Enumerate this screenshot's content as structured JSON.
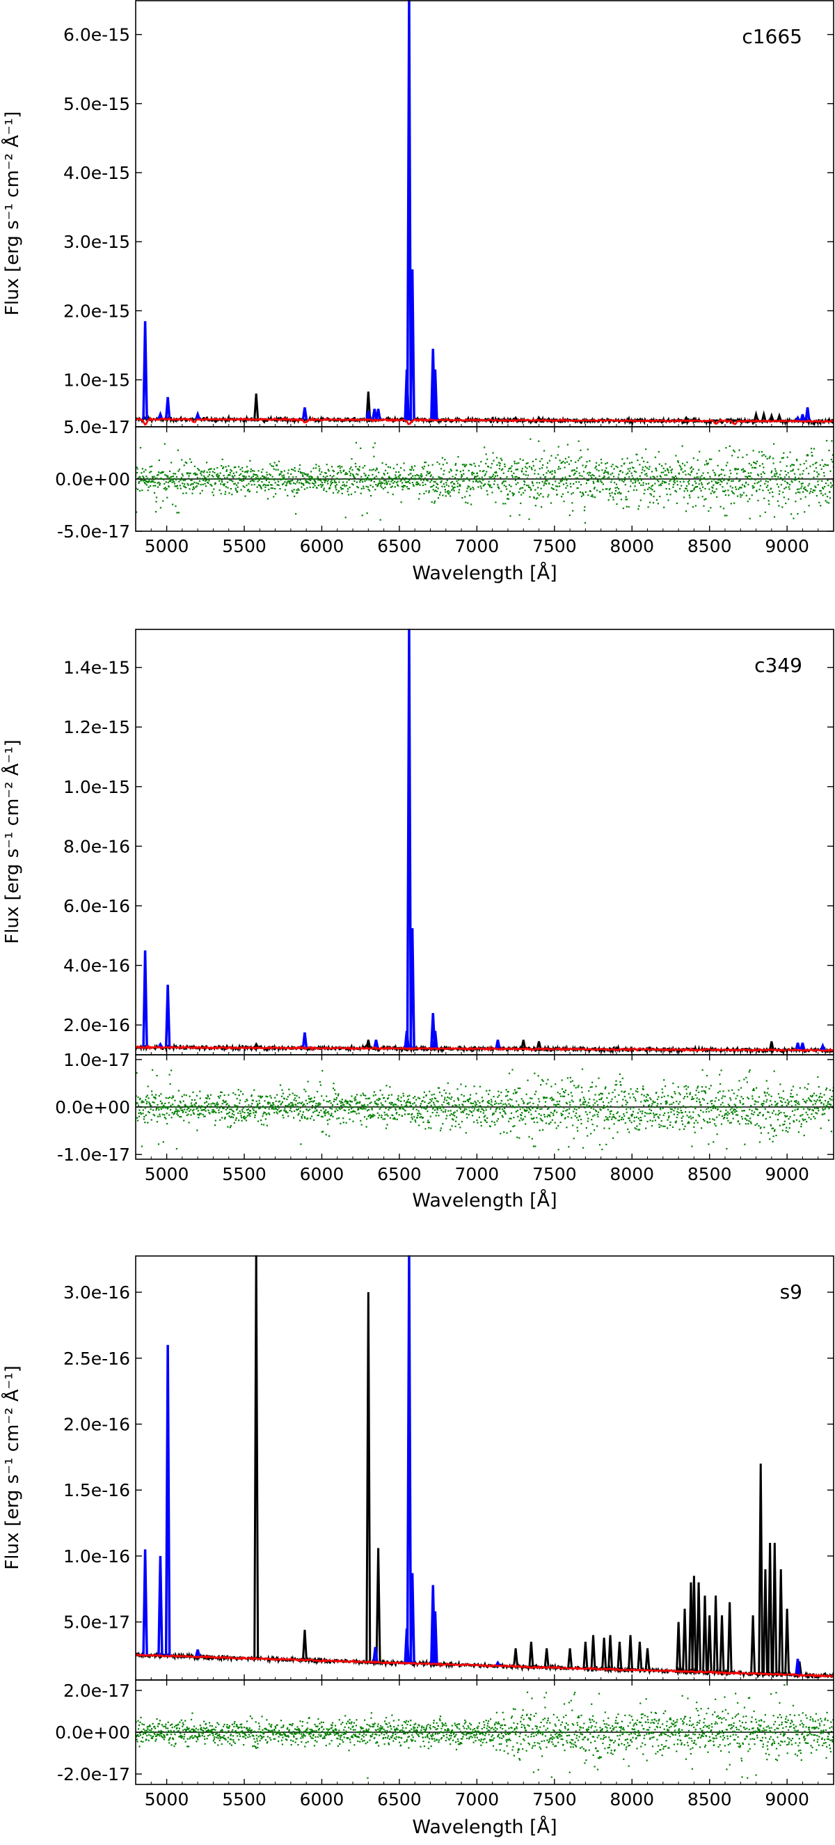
{
  "figure": {
    "x_label": "Wavelength [Å]",
    "y_label": "Flux [erg s⁻¹ cm⁻² Å⁻¹]"
  },
  "colors": {
    "observed": "#000000",
    "emission": "#0000ff",
    "model": "#ff0000",
    "residual": "#008000"
  },
  "chart_data": [
    {
      "type": "line",
      "panel_label": "c1665",
      "xlabel": "Wavelength [Å]",
      "ylabel": "Flux [erg s⁻¹ cm⁻² Å⁻¹]",
      "xlim": [
        4800,
        9300
      ],
      "x_ticks": [
        5000,
        5500,
        6000,
        6500,
        7000,
        7500,
        8000,
        8500,
        9000
      ],
      "x_tick_labels": [
        "5000",
        "5500",
        "6000",
        "6500",
        "7000",
        "7500",
        "8000",
        "8500",
        "9000"
      ],
      "ylim": [
        3.2e-16,
        6.5e-15
      ],
      "y_ticks": [
        1e-15,
        2e-15,
        3e-15,
        4e-15,
        5e-15,
        6e-15
      ],
      "y_tick_labels": [
        "1.0e-15",
        "2.0e-15",
        "3.0e-15",
        "4.0e-15",
        "5.0e-15",
        "6.0e-15"
      ],
      "continuum": [
        [
          4800,
          4.3e-16
        ],
        [
          9300,
          4e-16
        ]
      ],
      "sky_lines": [
        [
          5577,
          8e-16
        ],
        [
          6300,
          8.3e-16
        ],
        [
          7250,
          4.5e-16
        ],
        [
          7400,
          4.5e-16
        ],
        [
          7600,
          4.2e-16
        ],
        [
          8350,
          4.5e-16
        ],
        [
          8400,
          4.4e-16
        ],
        [
          8800,
          5e-16
        ],
        [
          8850,
          5e-16
        ],
        [
          8900,
          4.8e-16
        ],
        [
          8950,
          4.8e-16
        ]
      ],
      "emission_lines": [
        [
          4861,
          1.85e-15
        ],
        [
          4959,
          5e-16
        ],
        [
          5007,
          7.5e-16
        ],
        [
          5200,
          5e-16
        ],
        [
          5890,
          6e-16
        ],
        [
          6300,
          5.5e-16
        ],
        [
          6340,
          5.8e-16
        ],
        [
          6364,
          5.8e-16
        ],
        [
          6548,
          1.15e-15
        ],
        [
          6563,
          6.5e-15
        ],
        [
          6584,
          2.6e-15
        ],
        [
          6717,
          1.45e-15
        ],
        [
          6731,
          1.15e-15
        ],
        [
          9069,
          4.5e-16
        ],
        [
          9100,
          5e-16
        ],
        [
          9132,
          6e-16
        ]
      ],
      "model_dips": [
        [
          4862,
          3.5e-16
        ],
        [
          5175,
          3.9e-16
        ],
        [
          5895,
          3.8e-16
        ],
        [
          6563,
          3.5e-16
        ],
        [
          8542,
          3.6e-16
        ],
        [
          8662,
          3.6e-16
        ]
      ],
      "residual": {
        "ylim": [
          -5e-17,
          5e-17
        ],
        "y_ticks": [
          -5e-17,
          0,
          5e-17
        ],
        "y_tick_labels": [
          "-5.0e-17",
          "0.0e+00",
          "5.0e-17"
        ],
        "noise": [
          [
            4800,
            7e-18
          ],
          [
            6500,
            7e-18
          ],
          [
            7200,
            1.2e-17
          ],
          [
            9300,
            1.2e-17
          ]
        ],
        "outlier_zones": [
          [
            4800,
            5200,
            3.5e-17
          ],
          [
            5800,
            6400,
            4e-17
          ],
          [
            7200,
            7700,
            4.5e-17
          ],
          [
            8200,
            9300,
            3.8e-17
          ]
        ]
      }
    },
    {
      "type": "line",
      "panel_label": "c349",
      "xlabel": "Wavelength [Å]",
      "ylabel": "Flux [erg s⁻¹ cm⁻² Å⁻¹]",
      "xlim": [
        4800,
        9300
      ],
      "x_ticks": [
        5000,
        5500,
        6000,
        6500,
        7000,
        7500,
        8000,
        8500,
        9000
      ],
      "x_tick_labels": [
        "5000",
        "5500",
        "6000",
        "6500",
        "7000",
        "7500",
        "8000",
        "8500",
        "9000"
      ],
      "ylim": [
        1e-16,
        1.53e-15
      ],
      "y_ticks": [
        2e-16,
        4e-16,
        6e-16,
        8e-16,
        1e-15,
        1.2e-15,
        1.4e-15
      ],
      "y_tick_labels": [
        "2.0e-16",
        "4.0e-16",
        "6.0e-16",
        "8.0e-16",
        "1.0e-15",
        "1.2e-15",
        "1.4e-15"
      ],
      "continuum": [
        [
          4800,
          1.25e-16
        ],
        [
          9300,
          1.15e-16
        ]
      ],
      "sky_lines": [
        [
          5577,
          1.35e-16
        ],
        [
          6300,
          1.5e-16
        ],
        [
          7300,
          1.5e-16
        ],
        [
          7400,
          1.45e-16
        ],
        [
          8900,
          1.45e-16
        ]
      ],
      "emission_lines": [
        [
          4861,
          4.5e-16
        ],
        [
          4959,
          1.35e-16
        ],
        [
          5007,
          3.35e-16
        ],
        [
          5890,
          1.75e-16
        ],
        [
          6350,
          1.5e-16
        ],
        [
          6548,
          1.8e-16
        ],
        [
          6563,
          1.53e-15
        ],
        [
          6584,
          5.25e-16
        ],
        [
          6717,
          2.4e-16
        ],
        [
          6731,
          1.8e-16
        ],
        [
          7135,
          1.5e-16
        ],
        [
          9069,
          1.4e-16
        ],
        [
          9100,
          1.4e-16
        ],
        [
          9230,
          1.3e-16
        ]
      ],
      "model_dips": [],
      "residual": {
        "ylim": [
          -1.1e-17,
          1.1e-17
        ],
        "y_ticks": [
          -1e-17,
          0,
          1e-17
        ],
        "y_tick_labels": [
          "-1.0e-17",
          "0.0e+00",
          "1.0e-17"
        ],
        "noise": [
          [
            4800,
            1.5e-18
          ],
          [
            6500,
            1.8e-18
          ],
          [
            7200,
            2.5e-18
          ],
          [
            9300,
            2.5e-18
          ]
        ],
        "outlier_zones": [
          [
            4800,
            5100,
            9e-18
          ],
          [
            5800,
            6100,
            8e-18
          ],
          [
            7200,
            8000,
            9e-18
          ],
          [
            8200,
            9100,
            9e-18
          ]
        ]
      }
    },
    {
      "type": "line",
      "panel_label": "s9",
      "xlabel": "Wavelength [Å]",
      "ylabel": "Flux [erg s⁻¹ cm⁻² Å⁻¹]",
      "xlim": [
        4800,
        9300
      ],
      "x_ticks": [
        5000,
        5500,
        6000,
        6500,
        7000,
        7500,
        8000,
        8500,
        9000
      ],
      "x_tick_labels": [
        "5000",
        "5500",
        "6000",
        "6500",
        "7000",
        "7500",
        "8000",
        "8500",
        "9000"
      ],
      "ylim": [
        6e-18,
        3.28e-16
      ],
      "y_ticks": [
        5e-17,
        1e-16,
        1.5e-16,
        2e-16,
        2.5e-16,
        3e-16
      ],
      "y_tick_labels": [
        "5.0e-17",
        "1.0e-16",
        "1.5e-16",
        "2.0e-16",
        "2.5e-16",
        "3.0e-16"
      ],
      "continuum": [
        [
          4800,
          2.5e-17
        ],
        [
          9300,
          9e-18
        ]
      ],
      "sky_lines": [
        [
          5577,
          3.3e-16
        ],
        [
          5890,
          4.4e-17
        ],
        [
          6300,
          3e-16
        ],
        [
          6364,
          1.06e-16
        ],
        [
          7250,
          3e-17
        ],
        [
          7350,
          3.5e-17
        ],
        [
          7450,
          3e-17
        ],
        [
          7600,
          3e-17
        ],
        [
          7700,
          3.5e-17
        ],
        [
          7750,
          4e-17
        ],
        [
          7820,
          3.8e-17
        ],
        [
          7860,
          4e-17
        ],
        [
          7920,
          3.5e-17
        ],
        [
          7990,
          4e-17
        ],
        [
          8050,
          3.5e-17
        ],
        [
          8100,
          3e-17
        ],
        [
          8300,
          5e-17
        ],
        [
          8340,
          6e-17
        ],
        [
          8380,
          8e-17
        ],
        [
          8400,
          8.5e-17
        ],
        [
          8430,
          8e-17
        ],
        [
          8470,
          7e-17
        ],
        [
          8500,
          5.5e-17
        ],
        [
          8540,
          7e-17
        ],
        [
          8580,
          5.5e-17
        ],
        [
          8630,
          6.5e-17
        ],
        [
          8780,
          5.5e-17
        ],
        [
          8830,
          1.7e-16
        ],
        [
          8860,
          9e-17
        ],
        [
          8890,
          1.1e-16
        ],
        [
          8920,
          1.1e-16
        ],
        [
          8960,
          9e-17
        ],
        [
          9000,
          6e-17
        ],
        [
          9080,
          2e-17
        ]
      ],
      "emission_lines": [
        [
          4861,
          1.05e-16
        ],
        [
          4959,
          1e-16
        ],
        [
          5007,
          2.6e-16
        ],
        [
          5200,
          2.9e-17
        ],
        [
          6345,
          3.1e-17
        ],
        [
          6548,
          4.5e-17
        ],
        [
          6563,
          3.28e-16
        ],
        [
          6584,
          8.7e-17
        ],
        [
          6717,
          7.8e-17
        ],
        [
          6731,
          5.8e-17
        ],
        [
          7135,
          1.9e-17
        ],
        [
          9069,
          2.2e-17
        ]
      ],
      "model_dips": [],
      "residual": {
        "ylim": [
          -2.5e-17,
          2.5e-17
        ],
        "y_ticks": [
          -2e-17,
          0,
          2e-17
        ],
        "y_tick_labels": [
          "-2.0e-17",
          "0.0e+00",
          "2.0e-17"
        ],
        "noise": [
          [
            4800,
            3e-18
          ],
          [
            7000,
            3e-18
          ],
          [
            7200,
            5e-18
          ],
          [
            9300,
            5e-18
          ]
        ],
        "outlier_zones": [
          [
            5550,
            5600,
            2.3e-17
          ],
          [
            6250,
            6350,
            2.2e-17
          ],
          [
            7200,
            8100,
            2.2e-17
          ],
          [
            8300,
            9050,
            2.3e-17
          ]
        ]
      }
    }
  ]
}
